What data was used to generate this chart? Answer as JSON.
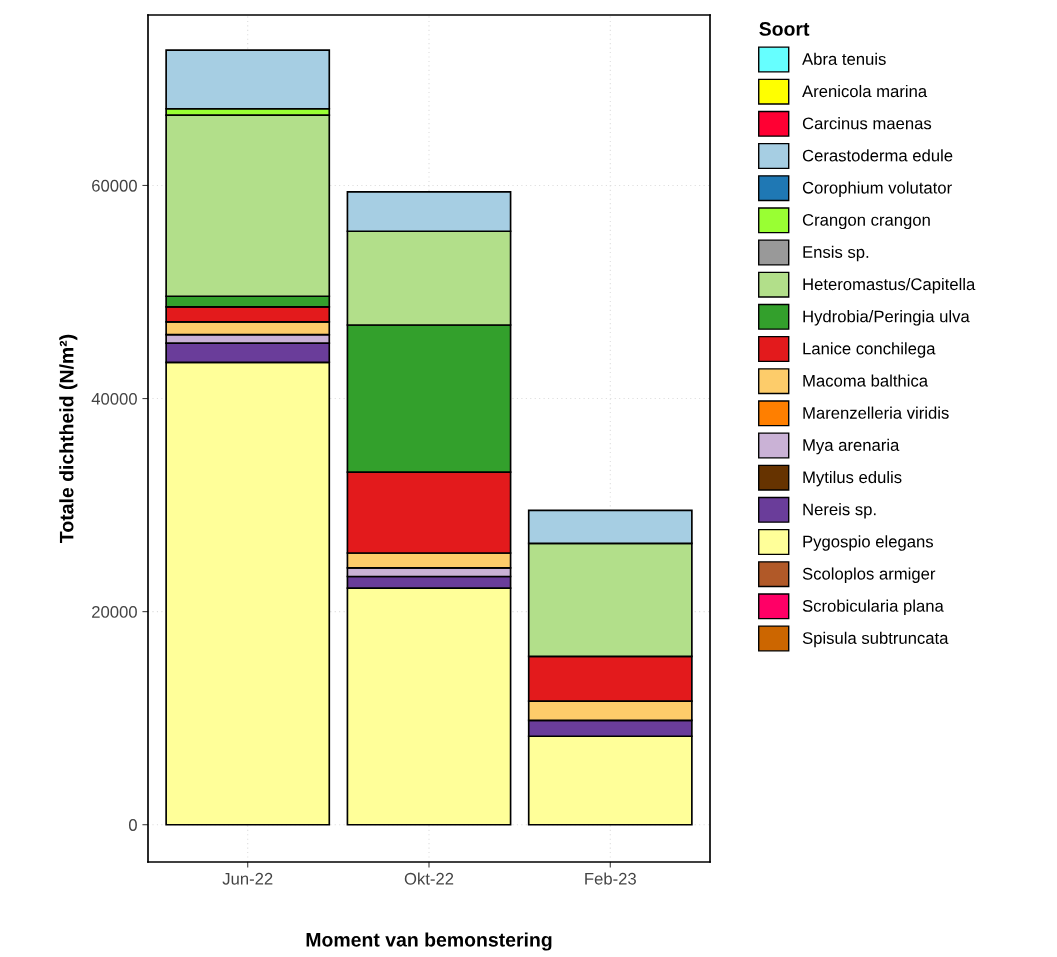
{
  "chart_data": {
    "type": "bar",
    "stacked": true,
    "xlabel": "Moment van bemonstering",
    "ylabel": "Totale dichtheid (N/m²)",
    "legend_title": "Soort",
    "legend": "right",
    "grid": true,
    "categories": [
      "Jun-22",
      "Okt-22",
      "Feb-23"
    ],
    "ylim": [
      -3500,
      76000
    ],
    "yticks": [
      0,
      20000,
      40000,
      60000
    ],
    "series": [
      {
        "name": "Spisula subtruncata",
        "color": "#cc6600",
        "values": [
          null,
          null,
          null
        ]
      },
      {
        "name": "Scrobicularia plana",
        "color": "#ff0066",
        "values": [
          null,
          null,
          null
        ]
      },
      {
        "name": "Scoloplos armiger",
        "color": "#b15928",
        "values": [
          null,
          null,
          null
        ]
      },
      {
        "name": "Pygospio elegans",
        "color": "#ffff99",
        "values": [
          43400,
          22200,
          8300
        ]
      },
      {
        "name": "Nereis sp.",
        "color": "#6a3d9a",
        "values": [
          1800,
          1100,
          1500
        ]
      },
      {
        "name": "Mytilus edulis",
        "color": "#663300",
        "values": [
          null,
          null,
          null
        ]
      },
      {
        "name": "Mya arenaria",
        "color": "#cab2d6",
        "values": [
          800,
          800,
          null
        ]
      },
      {
        "name": "Marenzelleria viridis",
        "color": "#ff7f00",
        "values": [
          null,
          null,
          null
        ]
      },
      {
        "name": "Macoma balthica",
        "color": "#fdcc6a",
        "values": [
          1200,
          1400,
          1800
        ]
      },
      {
        "name": "Lanice conchilega",
        "color": "#e31a1c",
        "values": [
          1400,
          7600,
          4200
        ]
      },
      {
        "name": "Hydrobia/Peringia ulva",
        "color": "#33a02c",
        "values": [
          1000,
          13800,
          null
        ]
      },
      {
        "name": "Heteromastus/Capitella",
        "color": "#b2df8a",
        "values": [
          17000,
          8800,
          10600
        ]
      },
      {
        "name": "Ensis sp.",
        "color": "#999999",
        "values": [
          null,
          null,
          null
        ]
      },
      {
        "name": "Crangon crangon",
        "color": "#99ff33",
        "values": [
          600,
          null,
          null
        ]
      },
      {
        "name": "Corophium volutator",
        "color": "#1f78b4",
        "values": [
          null,
          null,
          null
        ]
      },
      {
        "name": "Cerastoderma edule",
        "color": "#a6cee3",
        "values": [
          5500,
          3700,
          3100
        ]
      },
      {
        "name": "Carcinus maenas",
        "color": "#ff0033",
        "values": [
          null,
          null,
          null
        ]
      },
      {
        "name": "Arenicola marina",
        "color": "#ffff00",
        "values": [
          null,
          null,
          null
        ]
      },
      {
        "name": "Abra tenuis",
        "color": "#66ffff",
        "values": [
          null,
          null,
          null
        ]
      }
    ]
  }
}
